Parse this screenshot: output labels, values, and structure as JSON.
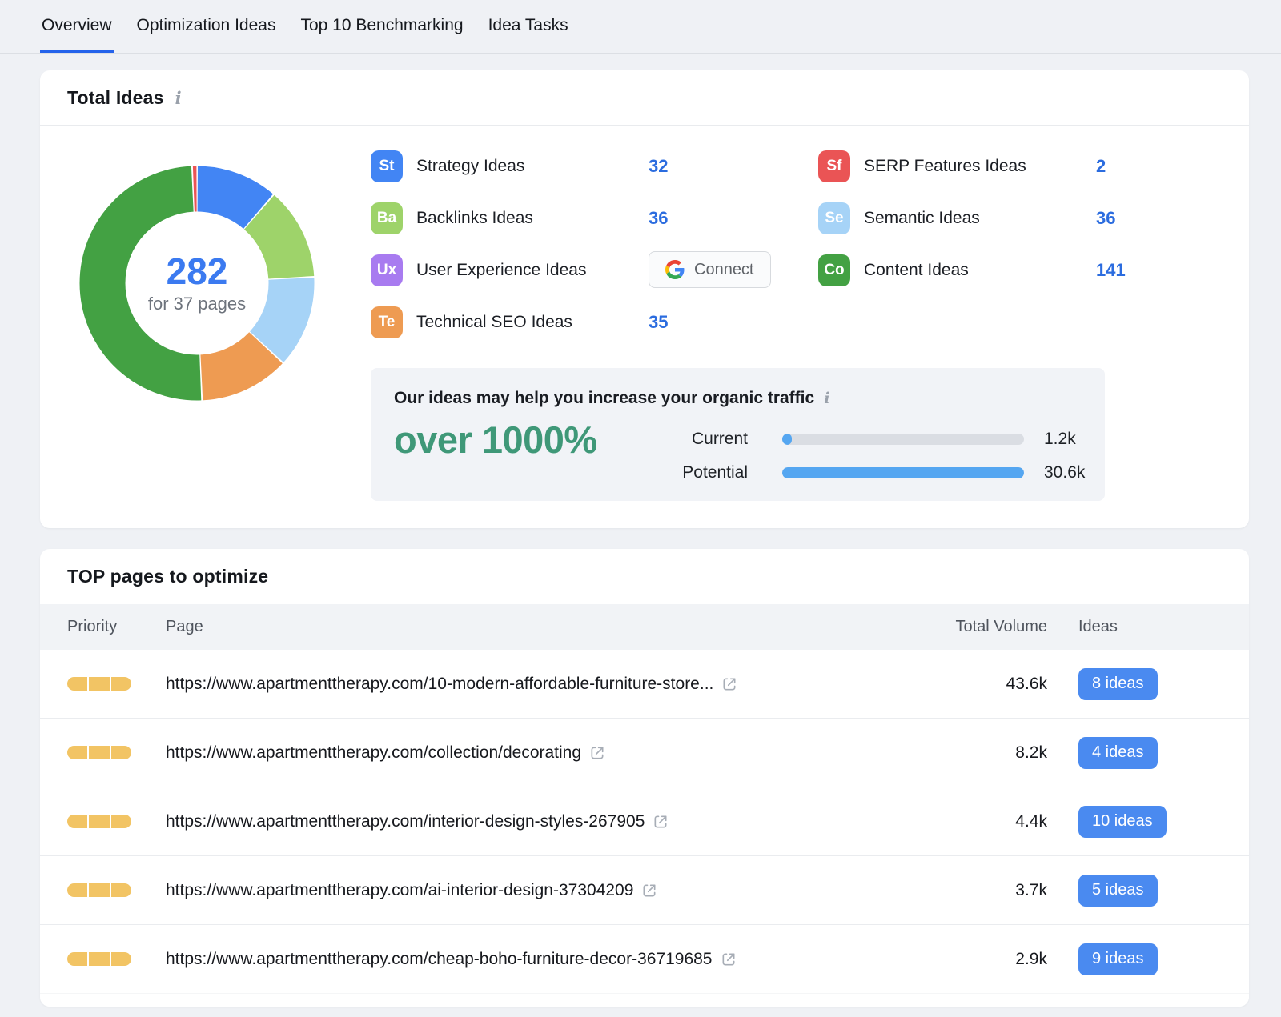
{
  "tabs": [
    {
      "label": "Overview",
      "active": true
    },
    {
      "label": "Optimization Ideas",
      "active": false
    },
    {
      "label": "Top 10 Benchmarking",
      "active": false
    },
    {
      "label": "Idea Tasks",
      "active": false
    }
  ],
  "icons": {
    "info": "i"
  },
  "total_ideas": {
    "title": "Total Ideas",
    "center_value": "282",
    "center_label": "for 37 pages",
    "connect_label": "Connect",
    "categories_left": [
      {
        "abbr": "St",
        "color": "#4285f4",
        "label": "Strategy Ideas",
        "value": "32"
      },
      {
        "abbr": "Ba",
        "color": "#9ed36a",
        "label": "Backlinks Ideas",
        "value": "36"
      },
      {
        "abbr": "Ux",
        "color": "#a87bf0",
        "label": "User Experience Ideas",
        "connect": true
      },
      {
        "abbr": "Te",
        "color": "#ee9b52",
        "label": "Technical SEO Ideas",
        "value": "35"
      }
    ],
    "categories_right": [
      {
        "abbr": "Sf",
        "color": "#ea5455",
        "label": "SERP Features Ideas",
        "value": "2"
      },
      {
        "abbr": "Se",
        "color": "#a6d3f7",
        "label": "Semantic Ideas",
        "value": "36"
      },
      {
        "abbr": "Co",
        "color": "#43a143",
        "label": "Content Ideas",
        "value": "141"
      }
    ],
    "traffic": {
      "title": "Our ideas may help you increase your organic traffic",
      "highlight": "over 1000%",
      "bars": [
        {
          "label": "Current",
          "value": "1.2k",
          "fraction": 0.04
        },
        {
          "label": "Potential",
          "value": "30.6k",
          "fraction": 1.0
        }
      ]
    }
  },
  "chart_data": {
    "type": "pie",
    "title": "Total Ideas by category",
    "total": 282,
    "center_value": "282",
    "center_label": "for 37 pages",
    "legend_position": "right",
    "segments": [
      {
        "label": "Strategy Ideas",
        "value": 32,
        "color": "#4285f4"
      },
      {
        "label": "Backlinks Ideas",
        "value": 36,
        "color": "#9ed36a"
      },
      {
        "label": "Semantic Ideas",
        "value": 36,
        "color": "#a6d3f7"
      },
      {
        "label": "Technical SEO Ideas",
        "value": 35,
        "color": "#ee9b52"
      },
      {
        "label": "Content Ideas",
        "value": 141,
        "color": "#43a143"
      },
      {
        "label": "SERP Features Ideas",
        "value": 2,
        "color": "#ea5455"
      }
    ]
  },
  "top_pages": {
    "title": "TOP pages to optimize",
    "columns": [
      "Priority",
      "Page",
      "Total Volume",
      "Ideas"
    ],
    "rows": [
      {
        "priority_level": 3,
        "url": "https://www.apartmenttherapy.com/10-modern-affordable-furniture-store...",
        "volume": "43.6k",
        "ideas": "8 ideas"
      },
      {
        "priority_level": 3,
        "url": "https://www.apartmenttherapy.com/collection/decorating",
        "volume": "8.2k",
        "ideas": "4 ideas"
      },
      {
        "priority_level": 3,
        "url": "https://www.apartmenttherapy.com/interior-design-styles-267905",
        "volume": "4.4k",
        "ideas": "10 ideas"
      },
      {
        "priority_level": 3,
        "url": "https://www.apartmenttherapy.com/ai-interior-design-37304209",
        "volume": "3.7k",
        "ideas": "5 ideas"
      },
      {
        "priority_level": 3,
        "url": "https://www.apartmenttherapy.com/cheap-boho-furniture-decor-36719685",
        "volume": "2.9k",
        "ideas": "9 ideas"
      }
    ]
  },
  "colors": {
    "value_blue": "#2b6cdf",
    "button_blue": "#4a8af0",
    "priority_yellow": "#f2c464",
    "highlight_green": "#3f9878",
    "bar_fill_blue": "#55a6f1",
    "bar_track_gray": "#dadde3",
    "tab_underline_blue": "#2563eb",
    "donut_center_blue": "#3b7af0"
  }
}
